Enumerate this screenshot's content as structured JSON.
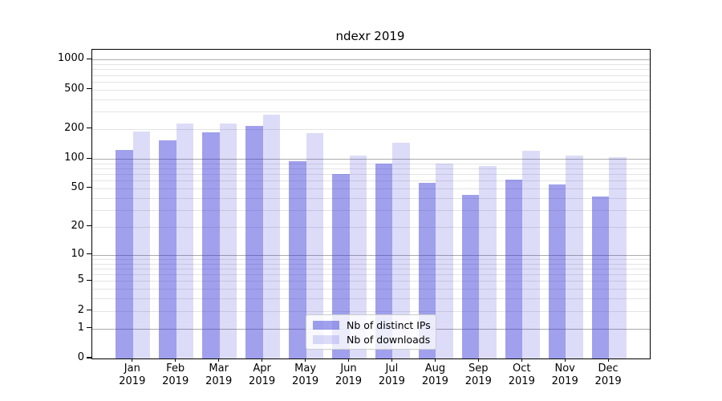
{
  "title": "ndexr 2019",
  "chart_data": {
    "type": "bar",
    "title": "ndexr 2019",
    "categories": [
      "Jan 2019",
      "Feb 2019",
      "Mar 2019",
      "Apr 2019",
      "May 2019",
      "Jun 2019",
      "Jul 2019",
      "Aug 2019",
      "Sep 2019",
      "Oct 2019",
      "Nov 2019",
      "Dec 2019"
    ],
    "series": [
      {
        "name": "Nb of distinct IPs",
        "color": "rgba(45,45,215,0.45)",
        "values": [
          122,
          153,
          185,
          216,
          95,
          70,
          90,
          57,
          43,
          62,
          55,
          41
        ]
      },
      {
        "name": "Nb of downloads",
        "color": "rgba(45,45,215,0.17)",
        "values": [
          188,
          228,
          227,
          280,
          183,
          109,
          145,
          89,
          84,
          121,
          108,
          105
        ]
      }
    ],
    "xlabel": "",
    "ylabel": "",
    "yscale": "log(value+1)",
    "yticks": [
      0,
      1,
      2,
      5,
      10,
      20,
      50,
      100,
      200,
      500,
      1000
    ],
    "ylim": [
      0,
      1250
    ],
    "grid": true,
    "grid_major_color": "#ababab",
    "grid_minor_color": "#e4e4e4",
    "legend_position": "lower center",
    "legend_entries": [
      "Nb of distinct IPs",
      "Nb of downloads"
    ]
  }
}
